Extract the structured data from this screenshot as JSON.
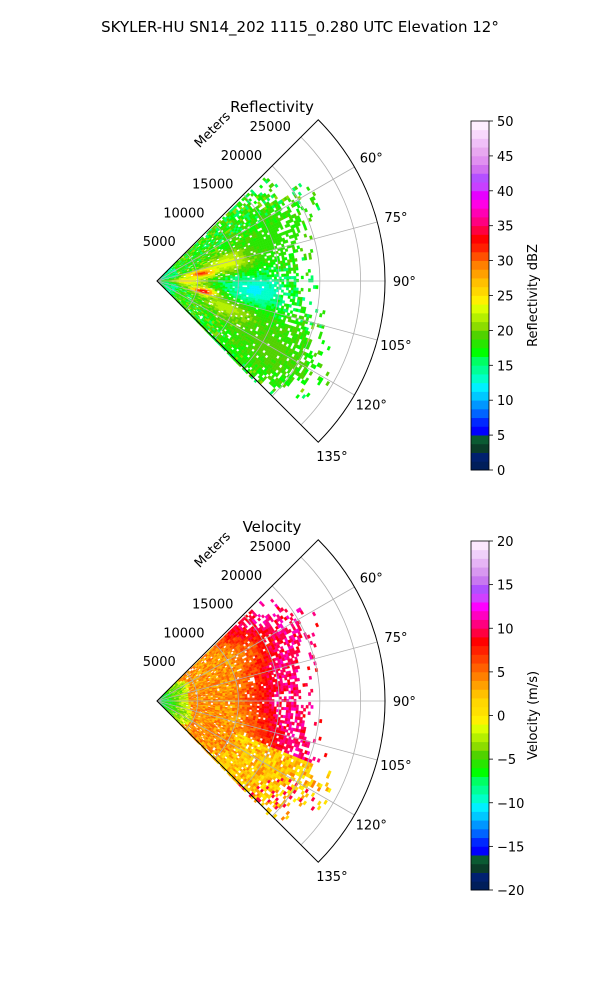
{
  "figure": {
    "suptitle": "SKYLER-HU  SN14_202  1115_0.280 UTC Elevation 12°"
  },
  "chart_data": [
    {
      "type": "polar-sector",
      "title": "Reflectivity",
      "radial_label": "Meters",
      "theta_range_deg": [
        45,
        135
      ],
      "theta_ticks": [
        "60°",
        "75°",
        "90°",
        "105°",
        "120°",
        "135°"
      ],
      "theta_tick_values": [
        60,
        75,
        90,
        105,
        120,
        135
      ],
      "r_range": [
        0,
        28000
      ],
      "r_ticks": [
        "5000",
        "10000",
        "15000",
        "20000",
        "25000"
      ],
      "r_tick_values": [
        5000,
        10000,
        15000,
        20000,
        25000
      ],
      "grid": true,
      "colorbar": {
        "label": "Reflectivity dBZ",
        "min": 0,
        "max": 50,
        "ticks": [
          "0",
          "5",
          "10",
          "15",
          "20",
          "25",
          "30",
          "35",
          "40",
          "45",
          "50"
        ],
        "tick_values": [
          0,
          5,
          10,
          15,
          20,
          25,
          30,
          35,
          40,
          45,
          50
        ],
        "levels": 40,
        "colors": [
          "#001e5a",
          "#00206e",
          "#0a3c28",
          "#0a5a32",
          "#0000ff",
          "#0028ff",
          "#0064ff",
          "#0096ff",
          "#00c8ff",
          "#00f0ff",
          "#00ffc8",
          "#00ff96",
          "#00ff64",
          "#00ff00",
          "#28e600",
          "#50d200",
          "#8cdc00",
          "#b4f000",
          "#dcff00",
          "#fff000",
          "#ffd700",
          "#ffc000",
          "#ffa000",
          "#ff8000",
          "#ff5000",
          "#ff2000",
          "#ff0000",
          "#ff0040",
          "#ff0080",
          "#ff00b4",
          "#ff00e6",
          "#e600ff",
          "#c840ff",
          "#b450ff",
          "#d070f0",
          "#e090f0",
          "#e8a8f0",
          "#f0c0f8",
          "#f8d8fc",
          "#fdeefe"
        ]
      },
      "field": {
        "max_range": 22500,
        "echo_blobs": [
          {
            "theta": 80,
            "r": 5500,
            "value": 36,
            "w_theta": 4,
            "w_r": 1600
          },
          {
            "theta": 102,
            "r": 5800,
            "value": 37,
            "w_theta": 4,
            "w_r": 1500
          },
          {
            "theta": 90,
            "r": 3500,
            "value": 25,
            "w_theta": 8,
            "w_r": 2500
          },
          {
            "theta": 75,
            "r": 9000,
            "value": 24,
            "w_theta": 8,
            "w_r": 3500
          },
          {
            "theta": 110,
            "r": 9500,
            "value": 23,
            "w_theta": 8,
            "w_r": 3500
          },
          {
            "theta": 95,
            "r": 12000,
            "value": 12,
            "w_theta": 10,
            "w_r": 4000
          },
          {
            "theta": 120,
            "r": 16000,
            "value": 19,
            "w_theta": 12,
            "w_r": 6000
          },
          {
            "theta": 70,
            "r": 16000,
            "value": 18,
            "w_theta": 10,
            "w_r": 5000
          }
        ],
        "base_value": 18,
        "edge_ranges": {
          "48": 16000,
          "60": 20000,
          "75": 17500,
          "90": 17000,
          "105": 19000,
          "120": 22000,
          "130": 20000,
          "135": 17000
        }
      }
    },
    {
      "type": "polar-sector",
      "title": "Velocity",
      "radial_label": "Meters",
      "theta_range_deg": [
        45,
        135
      ],
      "theta_ticks": [
        "60°",
        "75°",
        "90°",
        "105°",
        "120°",
        "135°"
      ],
      "theta_tick_values": [
        60,
        75,
        90,
        105,
        120,
        135
      ],
      "r_range": [
        0,
        28000
      ],
      "r_ticks": [
        "5000",
        "10000",
        "15000",
        "20000",
        "25000"
      ],
      "r_tick_values": [
        5000,
        10000,
        15000,
        20000,
        25000
      ],
      "grid": true,
      "colorbar": {
        "label": "Velocity (m/s)",
        "min": -20,
        "max": 20,
        "ticks": [
          "−20",
          "−15",
          "−10",
          "−5",
          "0",
          "5",
          "10",
          "15",
          "20"
        ],
        "tick_values": [
          -20,
          -15,
          -10,
          -5,
          0,
          5,
          10,
          15,
          20
        ],
        "levels": 40,
        "colors": [
          "#001e5a",
          "#002070",
          "#0a3c28",
          "#0a5a32",
          "#0000ff",
          "#0028ff",
          "#0064ff",
          "#0096ff",
          "#00c8ff",
          "#00f0ff",
          "#00ffc8",
          "#00ff96",
          "#00ff64",
          "#00ff00",
          "#28e600",
          "#50d200",
          "#8cdc00",
          "#b4f000",
          "#dcff00",
          "#fff000",
          "#ffe000",
          "#ffd700",
          "#ffc000",
          "#ffa000",
          "#ff8000",
          "#ff6000",
          "#ff4000",
          "#ff2000",
          "#ff0000",
          "#ff0040",
          "#ff0080",
          "#ff00c0",
          "#ff00ff",
          "#d040ff",
          "#b050ff",
          "#c878f0",
          "#d898f0",
          "#e6b4f5",
          "#f0d0fa",
          "#fbe8fd"
        ]
      },
      "field": {
        "max_range": 22500,
        "near_value": -8,
        "mid_value": 4,
        "far_value": 10,
        "edge_ranges": {
          "48": 16000,
          "60": 20000,
          "75": 17500,
          "90": 17000,
          "105": 19000,
          "120": 22000,
          "130": 20000,
          "135": 17000
        }
      }
    }
  ]
}
